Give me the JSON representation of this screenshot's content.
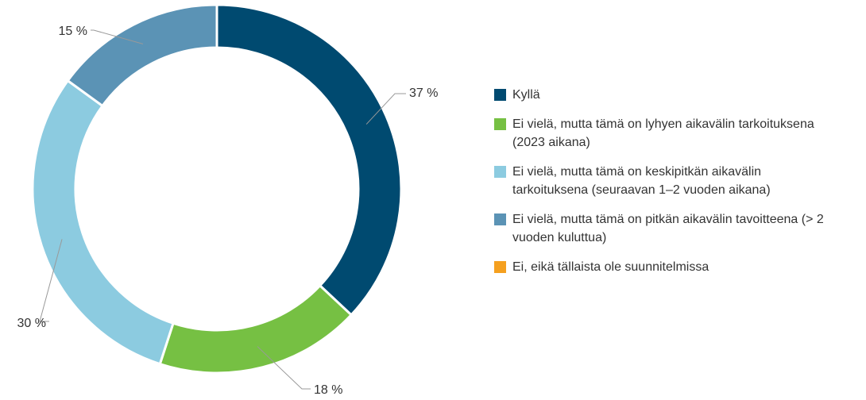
{
  "chart_data": {
    "type": "donut",
    "categories": [
      "Kyllä",
      "Ei vielä, mutta tämä on lyhyen aikavälin tarkoituksena (2023 aikana)",
      "Ei vielä, mutta tämä on keskipitkän aikavälin tarkoituksena (seuraavan 1–2 vuoden aikana)",
      "Ei vielä, mutta tämä on pitkän aikavälin tavoitteena (> 2 vuoden kuluttua)",
      "Ei, eikä tällaista ole suunnitelmissa"
    ],
    "values": [
      37,
      18,
      30,
      15,
      0
    ],
    "value_labels": [
      "37 %",
      "18 %",
      "30 %",
      "15 %",
      null
    ],
    "colors": [
      "#004a70",
      "#76c043",
      "#8ccbe0",
      "#5b93b5",
      "#f5a01f"
    ],
    "legend": "right"
  }
}
